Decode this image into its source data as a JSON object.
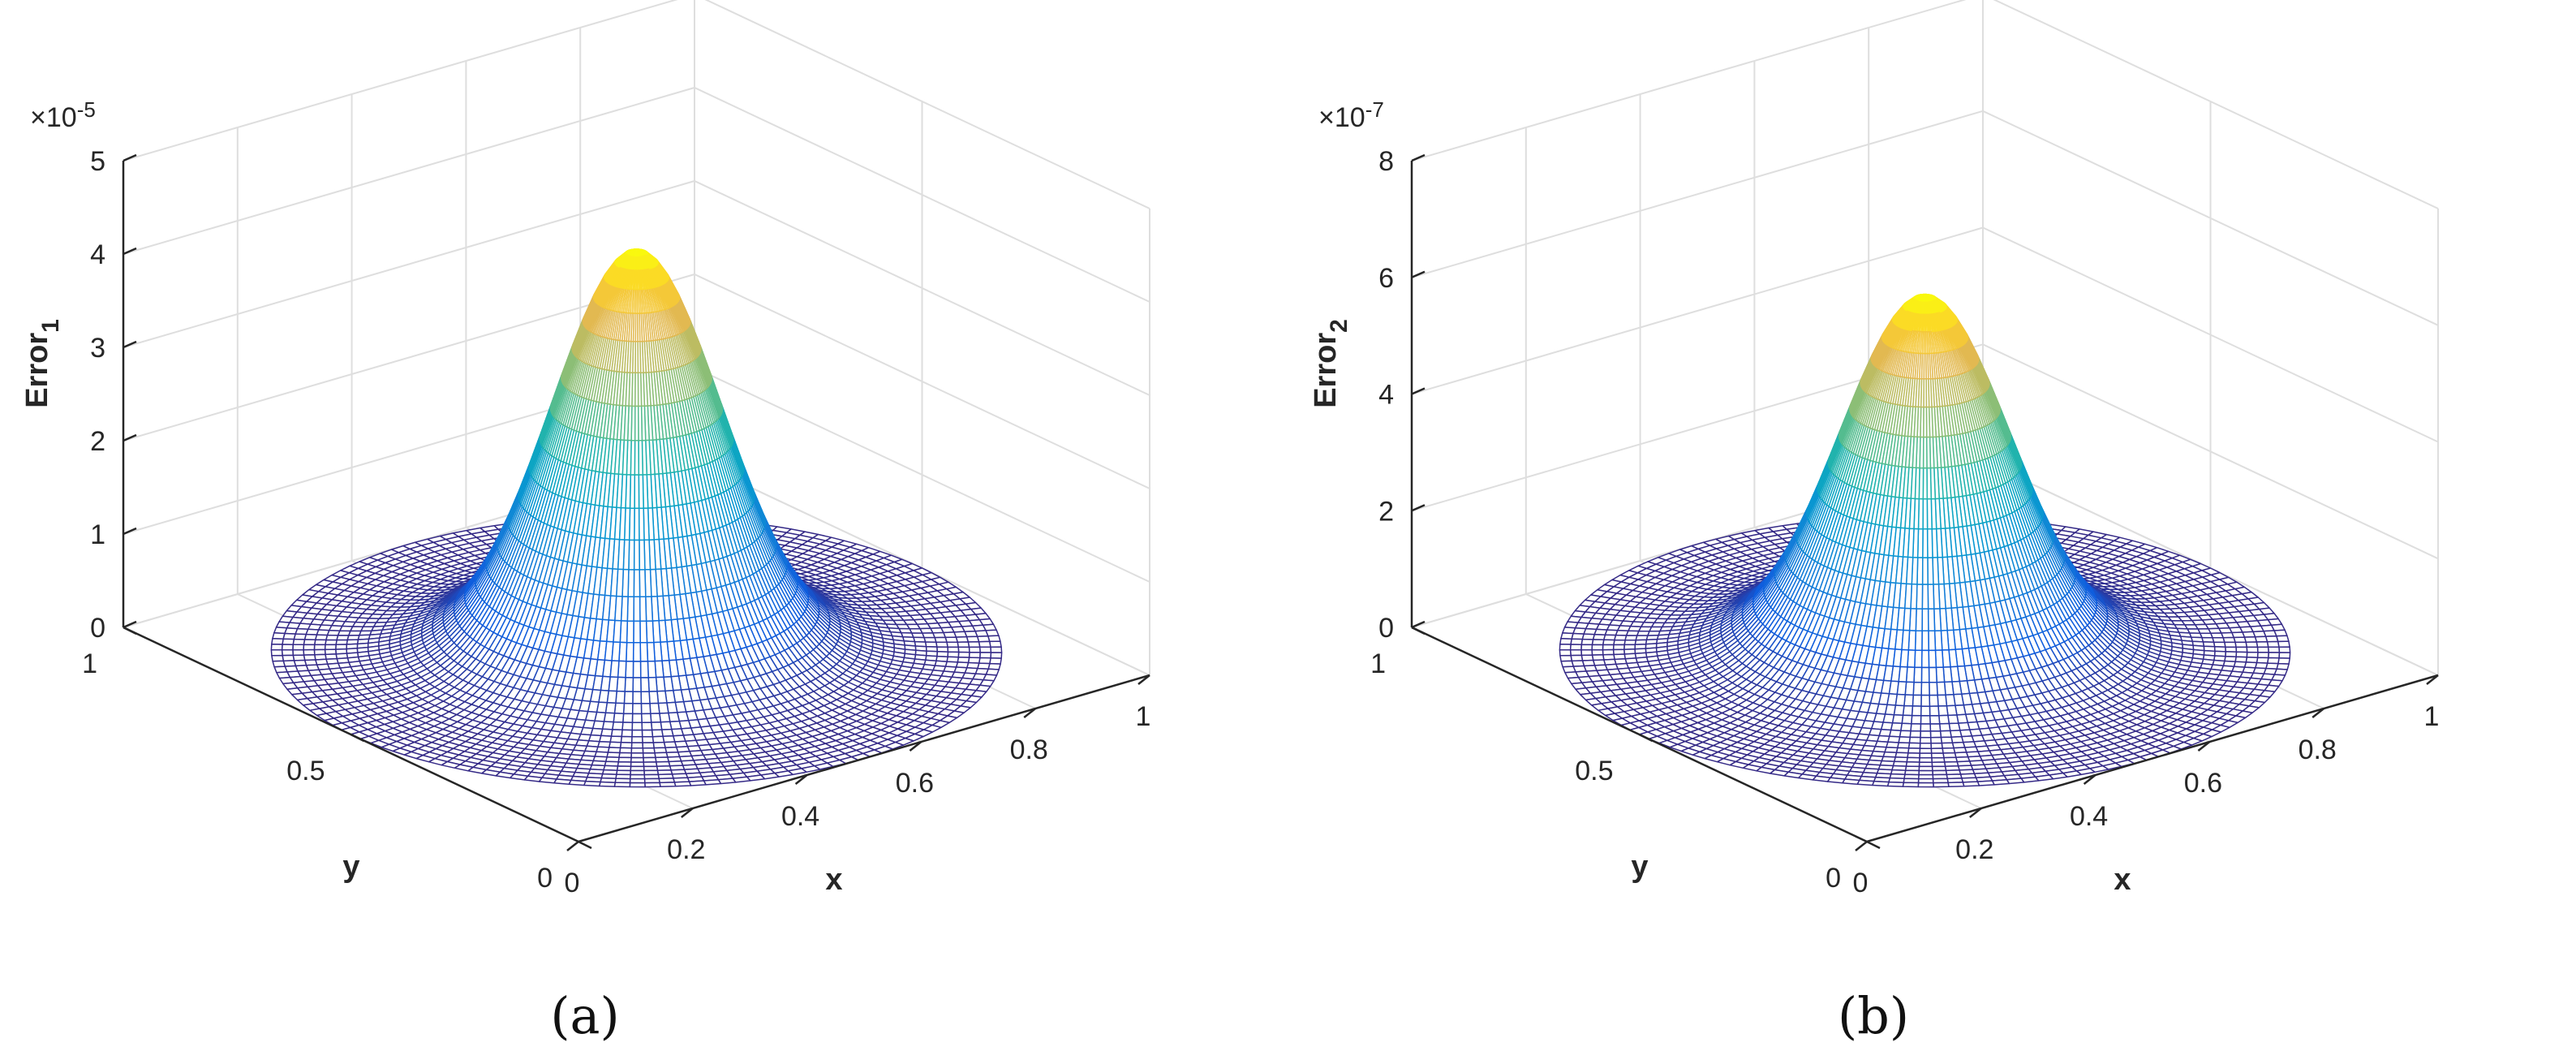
{
  "chart_data": [
    {
      "type": "surface",
      "panel_label": "(a)",
      "xlabel": "x",
      "ylabel": "y",
      "zlabel_base": "Error",
      "zlabel_sub": "1",
      "exponent_base": "×10",
      "exponent_power": "-5",
      "xlim": [
        0,
        1
      ],
      "ylim": [
        0,
        1
      ],
      "zlim": [
        0,
        5
      ],
      "x_ticks": [
        0,
        0.2,
        0.4,
        0.6,
        0.8,
        1
      ],
      "x_tick_labels": [
        "0",
        "0.2",
        "0.4",
        "0.6",
        "0.8",
        "1"
      ],
      "y_ticks": [
        0,
        0.5,
        1
      ],
      "y_tick_labels": [
        "0",
        "0.5",
        "1"
      ],
      "z_ticks": [
        0,
        1,
        2,
        3,
        4,
        5
      ],
      "z_tick_labels": [
        "0",
        "1",
        "2",
        "3",
        "4",
        "5"
      ],
      "domain": "disk centered (0.5, 0.5), radius 0.5",
      "peak_value": 4.3,
      "peak_location": [
        0.5,
        0.5
      ],
      "colormap": "parula",
      "grid": true
    },
    {
      "type": "surface",
      "panel_label": "(b)",
      "xlabel": "x",
      "ylabel": "y",
      "zlabel_base": "Error",
      "zlabel_sub": "2",
      "exponent_base": "×10",
      "exponent_power": "-7",
      "xlim": [
        0,
        1
      ],
      "ylim": [
        0,
        1
      ],
      "zlim": [
        0,
        8
      ],
      "x_ticks": [
        0,
        0.2,
        0.4,
        0.6,
        0.8,
        1
      ],
      "x_tick_labels": [
        "0",
        "0.2",
        "0.4",
        "0.6",
        "0.8",
        "1"
      ],
      "y_ticks": [
        0,
        0.5,
        1
      ],
      "y_tick_labels": [
        "0",
        "0.5",
        "1"
      ],
      "z_ticks": [
        0,
        2,
        4,
        6,
        8
      ],
      "z_tick_labels": [
        "0",
        "2",
        "4",
        "6",
        "8"
      ],
      "domain": "disk centered (0.5, 0.5), radius 0.5",
      "peak_value": 6.1,
      "peak_location": [
        0.5,
        0.5
      ],
      "colormap": "parula",
      "grid": true
    }
  ]
}
